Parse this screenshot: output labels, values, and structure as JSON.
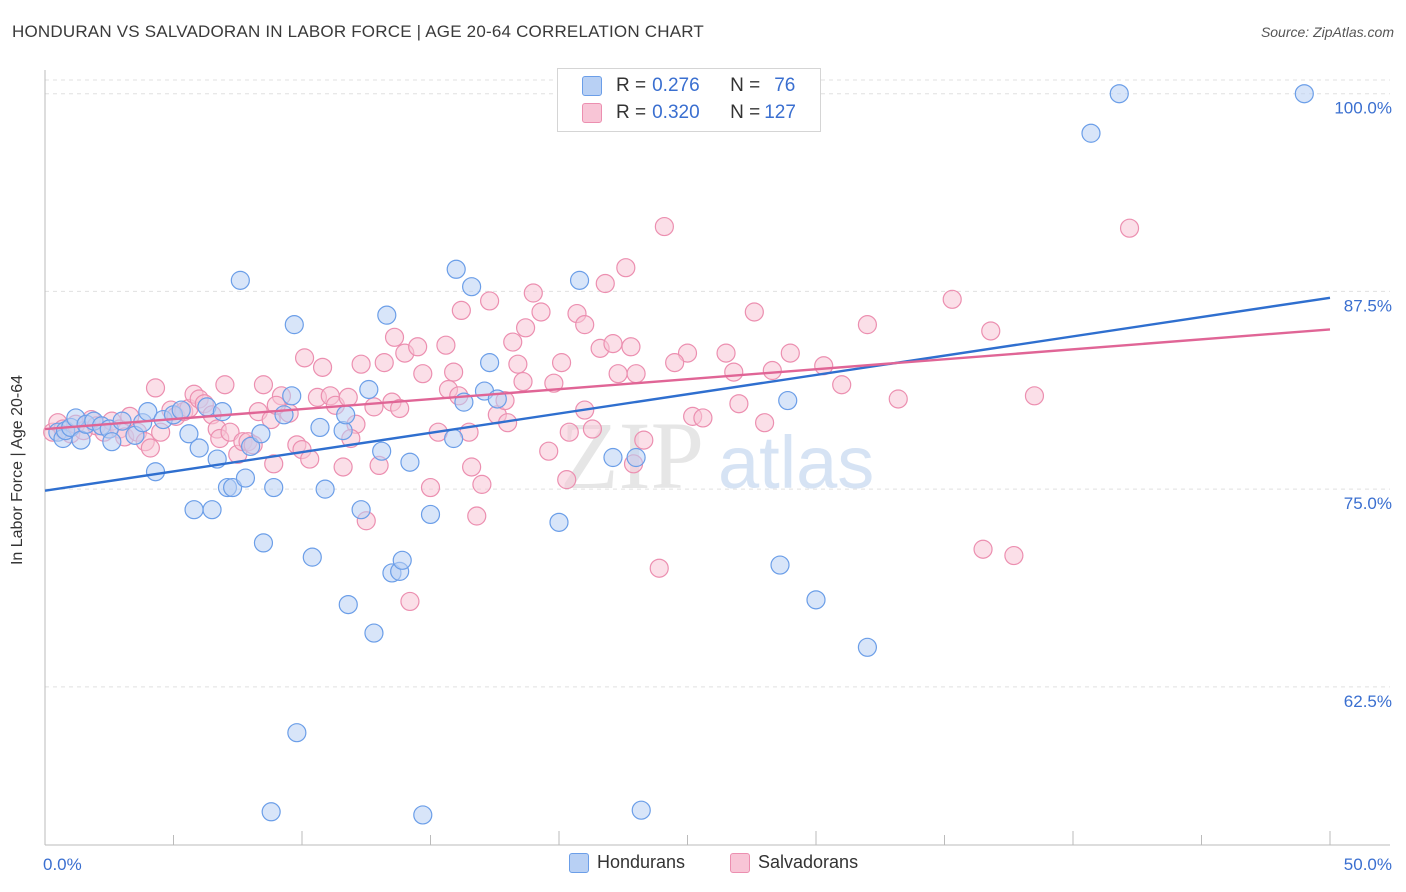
{
  "title": "HONDURAN VS SALVADORAN IN LABOR FORCE | AGE 20-64 CORRELATION CHART",
  "source": "Source: ZipAtlas.com",
  "watermark": {
    "zip": "ZIP",
    "atlas": "atlas"
  },
  "colors": {
    "hondurans": "#6b9ee8",
    "hondurans_fill": "#b8d0f4",
    "hondurans_line": "#2f6fcf",
    "salvadorans": "#ec8fb0",
    "salvadorans_fill": "#f8c5d6",
    "salvadorans_line": "#e06596",
    "axis_text": "#3a6fd0"
  },
  "stats": [
    {
      "r_label": "R = ",
      "r_value": "0.276",
      "n_label": "N = ",
      "n_value": "76"
    },
    {
      "r_label": "R = ",
      "r_value": "0.320",
      "n_label": "N = ",
      "n_value": "127"
    }
  ],
  "legend": [
    "Hondurans",
    "Salvadorans"
  ],
  "chart_data": {
    "type": "scatter",
    "title": "HONDURAN VS SALVADORAN IN LABOR FORCE | AGE 20-64 CORRELATION CHART",
    "xlabel": "",
    "ylabel": "In Labor Force | Age 20-64",
    "xlim": [
      0,
      50
    ],
    "ylim": [
      52.5,
      101.5
    ],
    "x_tick_labels": [
      "0.0%",
      "50.0%"
    ],
    "y_ticks": [
      62.5,
      75.0,
      87.5,
      100.0
    ],
    "y_tick_labels": [
      "62.5%",
      "75.0%",
      "87.5%",
      "100.0%"
    ],
    "grid": "horizontal dashed",
    "legend_position": "bottom-center",
    "series": [
      {
        "name": "Hondurans",
        "trend": [
          [
            0,
            74.9
          ],
          [
            50,
            87.1
          ]
        ],
        "points": [
          [
            0.5,
            78.6
          ],
          [
            0.7,
            78.2
          ],
          [
            0.8,
            78.7
          ],
          [
            1.0,
            78.9
          ],
          [
            1.2,
            79.5
          ],
          [
            1.4,
            78.1
          ],
          [
            1.6,
            79.1
          ],
          [
            1.9,
            79.3
          ],
          [
            2.2,
            79.0
          ],
          [
            2.5,
            78.8
          ],
          [
            2.6,
            78.0
          ],
          [
            3.0,
            79.3
          ],
          [
            3.5,
            78.4
          ],
          [
            3.8,
            79.2
          ],
          [
            4.0,
            79.9
          ],
          [
            4.3,
            76.1
          ],
          [
            4.6,
            79.4
          ],
          [
            5.0,
            79.7
          ],
          [
            5.3,
            80.0
          ],
          [
            5.6,
            78.5
          ],
          [
            5.8,
            73.7
          ],
          [
            6.0,
            77.6
          ],
          [
            6.3,
            80.2
          ],
          [
            6.5,
            73.7
          ],
          [
            6.7,
            76.9
          ],
          [
            6.9,
            79.9
          ],
          [
            7.1,
            75.1
          ],
          [
            7.3,
            75.1
          ],
          [
            7.6,
            88.2
          ],
          [
            7.8,
            75.7
          ],
          [
            8.0,
            77.7
          ],
          [
            8.4,
            78.5
          ],
          [
            8.5,
            71.6
          ],
          [
            8.9,
            75.1
          ],
          [
            9.3,
            79.7
          ],
          [
            9.6,
            80.9
          ],
          [
            9.7,
            85.4
          ],
          [
            10.4,
            70.7
          ],
          [
            10.7,
            78.9
          ],
          [
            10.9,
            75.0
          ],
          [
            11.6,
            78.7
          ],
          [
            11.7,
            79.7
          ],
          [
            11.8,
            67.7
          ],
          [
            12.3,
            73.7
          ],
          [
            12.6,
            81.3
          ],
          [
            12.8,
            65.9
          ],
          [
            13.1,
            77.4
          ],
          [
            13.3,
            86.0
          ],
          [
            13.5,
            69.7
          ],
          [
            13.8,
            69.8
          ],
          [
            13.9,
            70.5
          ],
          [
            14.2,
            76.7
          ],
          [
            15.0,
            73.4
          ],
          [
            15.9,
            78.2
          ],
          [
            16.0,
            88.9
          ],
          [
            16.3,
            80.5
          ],
          [
            16.6,
            87.8
          ],
          [
            17.1,
            81.2
          ],
          [
            17.3,
            83.0
          ],
          [
            17.6,
            80.7
          ],
          [
            20.0,
            72.9
          ],
          [
            20.8,
            88.2
          ],
          [
            22.1,
            77.0
          ],
          [
            23.0,
            77.0
          ],
          [
            23.2,
            54.7
          ],
          [
            25.2,
            98.5
          ],
          [
            28.6,
            70.2
          ],
          [
            28.9,
            80.6
          ],
          [
            30.0,
            68.0
          ],
          [
            32.0,
            65.0
          ],
          [
            40.7,
            97.5
          ],
          [
            41.8,
            100.0
          ],
          [
            49.0,
            100.0
          ],
          [
            9.8,
            59.6
          ],
          [
            8.8,
            54.6
          ],
          [
            14.7,
            54.4
          ]
        ]
      },
      {
        "name": "Salvadorans",
        "trend": [
          [
            0,
            78.8
          ],
          [
            50,
            85.1
          ]
        ],
        "points": [
          [
            0.3,
            78.6
          ],
          [
            0.5,
            79.2
          ],
          [
            0.7,
            78.8
          ],
          [
            1.0,
            78.5
          ],
          [
            1.2,
            79.1
          ],
          [
            1.5,
            78.7
          ],
          [
            1.8,
            79.4
          ],
          [
            2.0,
            79.0
          ],
          [
            2.3,
            78.6
          ],
          [
            2.6,
            79.3
          ],
          [
            2.9,
            78.8
          ],
          [
            3.1,
            78.3
          ],
          [
            3.3,
            79.6
          ],
          [
            3.6,
            78.6
          ],
          [
            3.9,
            78.0
          ],
          [
            4.1,
            77.6
          ],
          [
            4.3,
            81.4
          ],
          [
            4.5,
            78.6
          ],
          [
            4.9,
            80.0
          ],
          [
            5.1,
            79.6
          ],
          [
            5.4,
            79.9
          ],
          [
            5.6,
            80.1
          ],
          [
            5.8,
            81.0
          ],
          [
            6.0,
            80.7
          ],
          [
            6.2,
            80.4
          ],
          [
            6.5,
            79.7
          ],
          [
            6.7,
            78.8
          ],
          [
            6.8,
            78.2
          ],
          [
            7.0,
            81.6
          ],
          [
            7.2,
            78.6
          ],
          [
            7.5,
            77.2
          ],
          [
            7.7,
            78.0
          ],
          [
            7.9,
            78.0
          ],
          [
            8.1,
            77.8
          ],
          [
            8.3,
            79.9
          ],
          [
            8.5,
            81.6
          ],
          [
            8.8,
            79.4
          ],
          [
            8.9,
            76.6
          ],
          [
            9.2,
            80.9
          ],
          [
            9.5,
            79.8
          ],
          [
            9.8,
            77.8
          ],
          [
            10.0,
            77.5
          ],
          [
            10.3,
            76.9
          ],
          [
            10.6,
            80.8
          ],
          [
            10.8,
            82.7
          ],
          [
            11.1,
            80.9
          ],
          [
            11.3,
            80.3
          ],
          [
            11.6,
            76.4
          ],
          [
            11.8,
            80.8
          ],
          [
            12.1,
            79.1
          ],
          [
            12.3,
            82.9
          ],
          [
            12.5,
            73.0
          ],
          [
            12.8,
            80.2
          ],
          [
            13.0,
            76.5
          ],
          [
            13.2,
            83.0
          ],
          [
            13.5,
            80.5
          ],
          [
            13.8,
            80.1
          ],
          [
            14.0,
            83.6
          ],
          [
            14.2,
            67.9
          ],
          [
            14.5,
            84.0
          ],
          [
            14.7,
            82.3
          ],
          [
            15.0,
            75.1
          ],
          [
            15.3,
            78.6
          ],
          [
            15.6,
            84.1
          ],
          [
            15.9,
            82.4
          ],
          [
            16.2,
            86.3
          ],
          [
            16.5,
            78.6
          ],
          [
            16.6,
            76.4
          ],
          [
            16.8,
            73.3
          ],
          [
            17.0,
            75.3
          ],
          [
            17.3,
            86.9
          ],
          [
            17.6,
            79.7
          ],
          [
            17.9,
            80.6
          ],
          [
            18.2,
            84.3
          ],
          [
            18.4,
            82.9
          ],
          [
            18.7,
            85.2
          ],
          [
            19.0,
            87.4
          ],
          [
            19.3,
            86.2
          ],
          [
            19.6,
            77.4
          ],
          [
            19.8,
            81.7
          ],
          [
            20.1,
            83.0
          ],
          [
            20.4,
            78.6
          ],
          [
            20.7,
            86.1
          ],
          [
            21.0,
            85.4
          ],
          [
            21.3,
            78.8
          ],
          [
            21.6,
            83.9
          ],
          [
            21.8,
            88.0
          ],
          [
            22.1,
            84.2
          ],
          [
            22.3,
            82.3
          ],
          [
            22.6,
            89.0
          ],
          [
            22.8,
            84.0
          ],
          [
            23.0,
            82.3
          ],
          [
            23.3,
            78.1
          ],
          [
            23.9,
            70.0
          ],
          [
            24.1,
            91.6
          ],
          [
            25.0,
            83.6
          ],
          [
            25.2,
            79.6
          ],
          [
            25.6,
            79.5
          ],
          [
            26.5,
            83.6
          ],
          [
            27.0,
            80.4
          ],
          [
            27.6,
            86.2
          ],
          [
            28.3,
            82.5
          ],
          [
            29.0,
            83.6
          ],
          [
            30.3,
            82.8
          ],
          [
            32.0,
            85.4
          ],
          [
            33.2,
            80.7
          ],
          [
            35.3,
            87.0
          ],
          [
            36.5,
            71.2
          ],
          [
            36.8,
            85.0
          ],
          [
            37.7,
            70.8
          ],
          [
            38.5,
            80.9
          ],
          [
            42.2,
            91.5
          ],
          [
            11.9,
            78.2
          ],
          [
            15.7,
            81.3
          ],
          [
            18.0,
            79.2
          ],
          [
            20.3,
            75.6
          ],
          [
            22.9,
            76.6
          ],
          [
            9.0,
            80.3
          ],
          [
            10.1,
            83.3
          ],
          [
            13.6,
            84.6
          ],
          [
            16.1,
            80.9
          ],
          [
            18.6,
            81.8
          ],
          [
            21.0,
            80.0
          ],
          [
            24.5,
            83.0
          ],
          [
            26.8,
            82.4
          ],
          [
            28.0,
            79.2
          ],
          [
            31.0,
            81.6
          ]
        ]
      }
    ]
  }
}
